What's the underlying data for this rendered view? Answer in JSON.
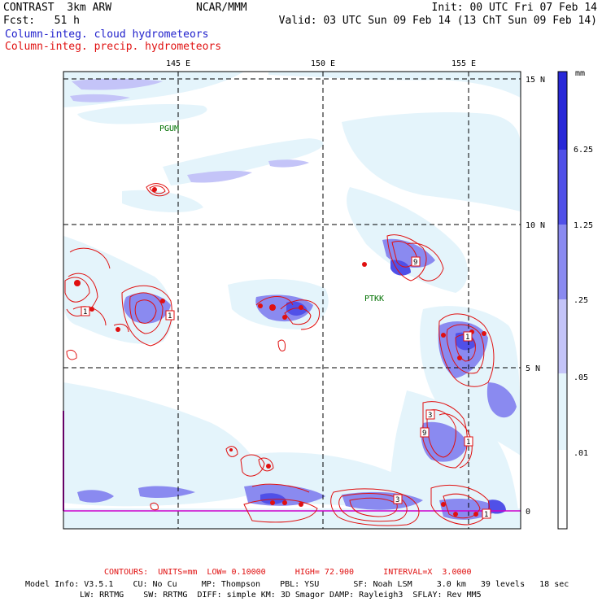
{
  "header": {
    "model": "CONTRAST  3km ARW",
    "org": "NCAR/MMM",
    "init": "Init: 00 UTC Fri 07 Feb 14",
    "fcst": "Fcst:   51 h",
    "valid": "Valid: 03 UTC Sun 09 Feb 14 (13 ChT Sun 09 Feb 14)",
    "field_cloud": "Column-integ. cloud hydrometeors",
    "field_precip": "Column-integ. precip. hydrometeors"
  },
  "map": {
    "lon_labels": [
      "145 E",
      "150 E",
      "155 E"
    ],
    "lat_labels": [
      "15 N",
      "10 N",
      "5 N",
      "0"
    ],
    "stations": [
      "PGUM",
      "PTKK"
    ],
    "contour_marks": [
      "1",
      "1",
      "9",
      "1",
      "3",
      "9",
      "1",
      "3",
      "1"
    ]
  },
  "legend": {
    "unit": "mm",
    "levels": [
      "6.25",
      "1.25",
      ".25",
      ".05",
      ".01"
    ],
    "colors": [
      "#2828d8",
      "#5050e8",
      "#8a8af0",
      "#c4c4f8",
      "#e4f4fb",
      "#ffffff"
    ]
  },
  "footer": {
    "contours": "CONTOURS:  UNITS=mm  LOW= 0.10000      HIGH= 72.900      INTERVAL=X  3.0000",
    "model_info_1": "Model Info: V3.5.1    CU: No Cu     MP: Thompson    PBL: YSU       SF: Noah LSM     3.0 km   39 levels   18 sec",
    "model_info_2": "LW: RRTMG    SW: RRTMG  DIFF: simple KM: 3D Smagor DAMP: Rayleigh3  SFLAY: Rev MM5"
  }
}
